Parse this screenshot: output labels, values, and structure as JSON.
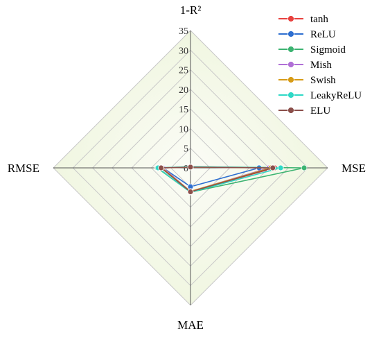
{
  "chart_data": {
    "type": "radar",
    "axes": [
      "1-R²",
      "MSE",
      "MAE",
      "RMSE"
    ],
    "radial_ticks": [
      "0",
      "5",
      "10",
      "15",
      "20",
      "25",
      "30",
      "35"
    ],
    "rlim": [
      0,
      35
    ],
    "grid": true,
    "legend_position": "top-right",
    "series": [
      {
        "name": "tanh",
        "color": "#e8413e",
        "values": [
          0.2,
          21.5,
          6.0,
          7.2
        ]
      },
      {
        "name": "ReLU",
        "color": "#2e6fd0",
        "values": [
          0.2,
          17.5,
          4.8,
          7.0
        ]
      },
      {
        "name": "Sigmoid",
        "color": "#3cb371",
        "values": [
          0.3,
          29.0,
          6.2,
          8.5
        ]
      },
      {
        "name": "Mish",
        "color": "#b06fd6",
        "values": [
          0.2,
          20.0,
          6.0,
          7.0
        ]
      },
      {
        "name": "Swish",
        "color": "#d79b16",
        "values": [
          0.2,
          20.5,
          6.0,
          7.3
        ]
      },
      {
        "name": "LeakyReLU",
        "color": "#2fd8c6",
        "values": [
          0.3,
          23.0,
          6.2,
          8.3
        ]
      },
      {
        "name": "ELU",
        "color": "#8b4f4a",
        "values": [
          0.2,
          21.0,
          6.1,
          7.5
        ]
      }
    ]
  }
}
